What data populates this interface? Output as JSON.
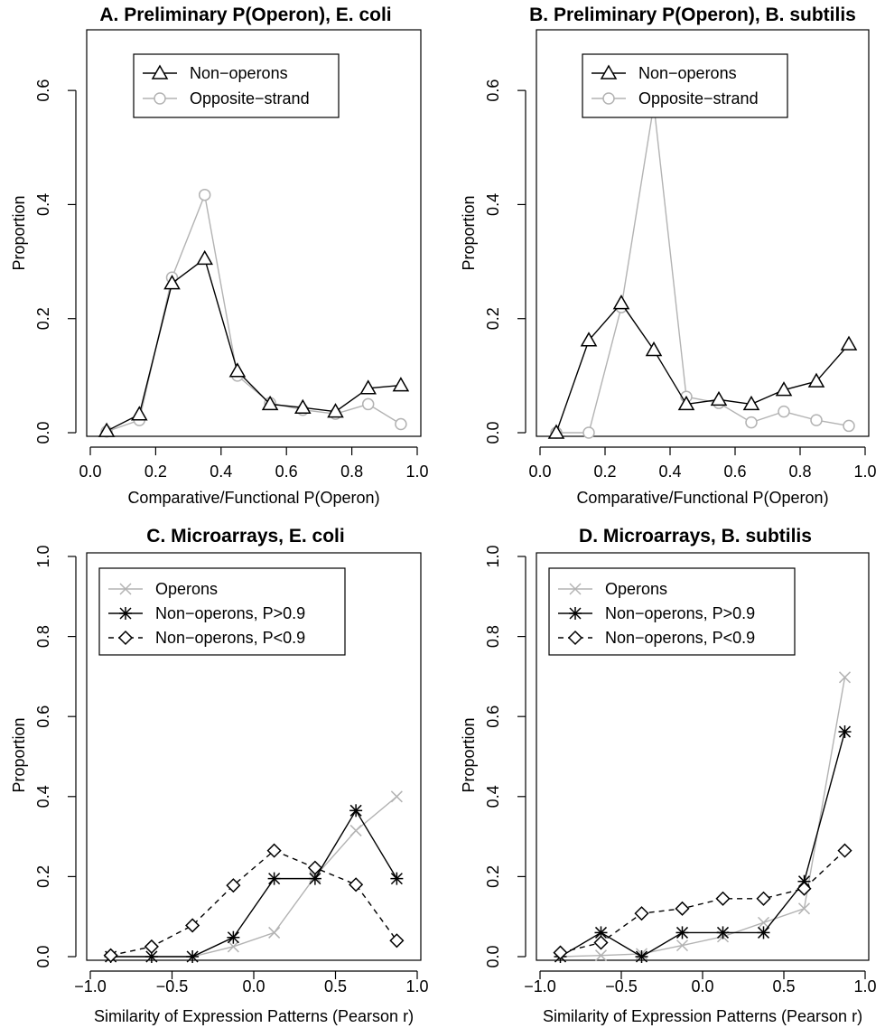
{
  "chart_data": [
    {
      "type": "line",
      "title": "A. Preliminary P(Operon), E. coli",
      "xlabel": "Comparative/Functional P(Operon)",
      "ylabel": "Proportion",
      "xlim": [
        0,
        1
      ],
      "ylim": [
        0,
        0.7
      ],
      "xticks": [
        "0.0",
        "0.2",
        "0.4",
        "0.6",
        "0.8",
        "1.0"
      ],
      "xtick_values": [
        0,
        0.2,
        0.4,
        0.6,
        0.8,
        1.0
      ],
      "yticks": [
        "0.0",
        "0.2",
        "0.4",
        "0.6"
      ],
      "ytick_values": [
        0,
        0.2,
        0.4,
        0.6
      ],
      "legend_position": "top-center",
      "grid": false,
      "x": [
        0.05,
        0.15,
        0.25,
        0.35,
        0.45,
        0.55,
        0.65,
        0.75,
        0.85,
        0.95
      ],
      "series": [
        {
          "name": "Non−operons",
          "color": "#000000",
          "marker": "triangle",
          "dash": "solid",
          "values": [
            0.003,
            0.032,
            0.262,
            0.305,
            0.108,
            0.05,
            0.044,
            0.037,
            0.078,
            0.083
          ]
        },
        {
          "name": "Opposite−strand",
          "color": "#b3b3b3",
          "marker": "circle",
          "dash": "solid",
          "values": [
            0.002,
            0.022,
            0.272,
            0.417,
            0.1,
            0.052,
            0.04,
            0.033,
            0.05,
            0.015
          ]
        }
      ]
    },
    {
      "type": "line",
      "title": "B. Preliminary P(Operon), B. subtilis",
      "xlabel": "Comparative/Functional P(Operon)",
      "ylabel": "Proportion",
      "xlim": [
        0,
        1
      ],
      "ylim": [
        0,
        0.7
      ],
      "xticks": [
        "0.0",
        "0.2",
        "0.4",
        "0.6",
        "0.8",
        "1.0"
      ],
      "xtick_values": [
        0,
        0.2,
        0.4,
        0.6,
        0.8,
        1.0
      ],
      "yticks": [
        "0.0",
        "0.2",
        "0.4",
        "0.6"
      ],
      "ytick_values": [
        0,
        0.2,
        0.4,
        0.6
      ],
      "legend_position": "top-center",
      "grid": false,
      "x": [
        0.05,
        0.15,
        0.25,
        0.35,
        0.45,
        0.55,
        0.65,
        0.75,
        0.85,
        0.95
      ],
      "series": [
        {
          "name": "Non−operons",
          "color": "#000000",
          "marker": "triangle",
          "dash": "solid",
          "values": [
            0.0,
            0.162,
            0.227,
            0.145,
            0.05,
            0.058,
            0.05,
            0.075,
            0.09,
            0.155
          ]
        },
        {
          "name": "Opposite−strand",
          "color": "#b3b3b3",
          "marker": "circle",
          "dash": "solid",
          "values": [
            0.0,
            0.0,
            0.22,
            0.575,
            0.063,
            0.052,
            0.018,
            0.037,
            0.022,
            0.012
          ]
        }
      ]
    },
    {
      "type": "line",
      "title": "C. Microarrays, E. coli",
      "xlabel": "Similarity of Expression Patterns (Pearson r)",
      "ylabel": "Proportion",
      "xlim": [
        -1,
        1
      ],
      "ylim": [
        0,
        1.0
      ],
      "xticks": [
        "−1.0",
        "−0.5",
        "0.0",
        "0.5",
        "1.0"
      ],
      "xtick_values": [
        -1,
        -0.5,
        0,
        0.5,
        1
      ],
      "yticks": [
        "0.0",
        "0.2",
        "0.4",
        "0.6",
        "0.8",
        "1.0"
      ],
      "ytick_values": [
        0,
        0.2,
        0.4,
        0.6,
        0.8,
        1.0
      ],
      "legend_position": "top-left",
      "grid": false,
      "x": [
        -0.875,
        -0.625,
        -0.375,
        -0.125,
        0.125,
        0.375,
        0.625,
        0.875
      ],
      "series": [
        {
          "name": "Operons",
          "color": "#b3b3b3",
          "marker": "cross",
          "dash": "solid",
          "values": [
            0.0,
            0.0,
            0.0,
            0.025,
            0.06,
            0.2,
            0.315,
            0.4
          ]
        },
        {
          "name": "Non−operons, P>0.9",
          "color": "#000000",
          "marker": "asterisk",
          "dash": "solid",
          "values": [
            0.0,
            0.0,
            0.0,
            0.048,
            0.195,
            0.195,
            0.365,
            0.195
          ]
        },
        {
          "name": "Non−operons, P<0.9",
          "color": "#000000",
          "marker": "diamond",
          "dash": "dashed",
          "values": [
            0.003,
            0.025,
            0.078,
            0.178,
            0.265,
            0.222,
            0.18,
            0.04
          ]
        }
      ]
    },
    {
      "type": "line",
      "title": "D. Microarrays, B. subtilis",
      "xlabel": "Similarity of Expression Patterns (Pearson r)",
      "ylabel": "Proportion",
      "xlim": [
        -1,
        1
      ],
      "ylim": [
        0,
        1.0
      ],
      "xticks": [
        "−1.0",
        "−0.5",
        "0.0",
        "0.5",
        "1.0"
      ],
      "xtick_values": [
        -1,
        -0.5,
        0,
        0.5,
        1
      ],
      "yticks": [
        "0.0",
        "0.2",
        "0.4",
        "0.6",
        "0.8",
        "1.0"
      ],
      "ytick_values": [
        0,
        0.2,
        0.4,
        0.6,
        0.8,
        1.0
      ],
      "legend_position": "top-left",
      "grid": false,
      "x": [
        -0.875,
        -0.625,
        -0.375,
        -0.125,
        0.125,
        0.375,
        0.625,
        0.875
      ],
      "series": [
        {
          "name": "Operons",
          "color": "#b3b3b3",
          "marker": "cross",
          "dash": "solid",
          "values": [
            0.0,
            0.003,
            0.007,
            0.028,
            0.05,
            0.085,
            0.12,
            0.698
          ]
        },
        {
          "name": "Non−operons, P>0.9",
          "color": "#000000",
          "marker": "asterisk",
          "dash": "solid",
          "values": [
            0.0,
            0.06,
            0.0,
            0.06,
            0.06,
            0.06,
            0.188,
            0.562
          ]
        },
        {
          "name": "Non−operons, P<0.9",
          "color": "#000000",
          "marker": "diamond",
          "dash": "dashed",
          "values": [
            0.01,
            0.035,
            0.108,
            0.12,
            0.145,
            0.145,
            0.17,
            0.265
          ]
        }
      ]
    }
  ]
}
